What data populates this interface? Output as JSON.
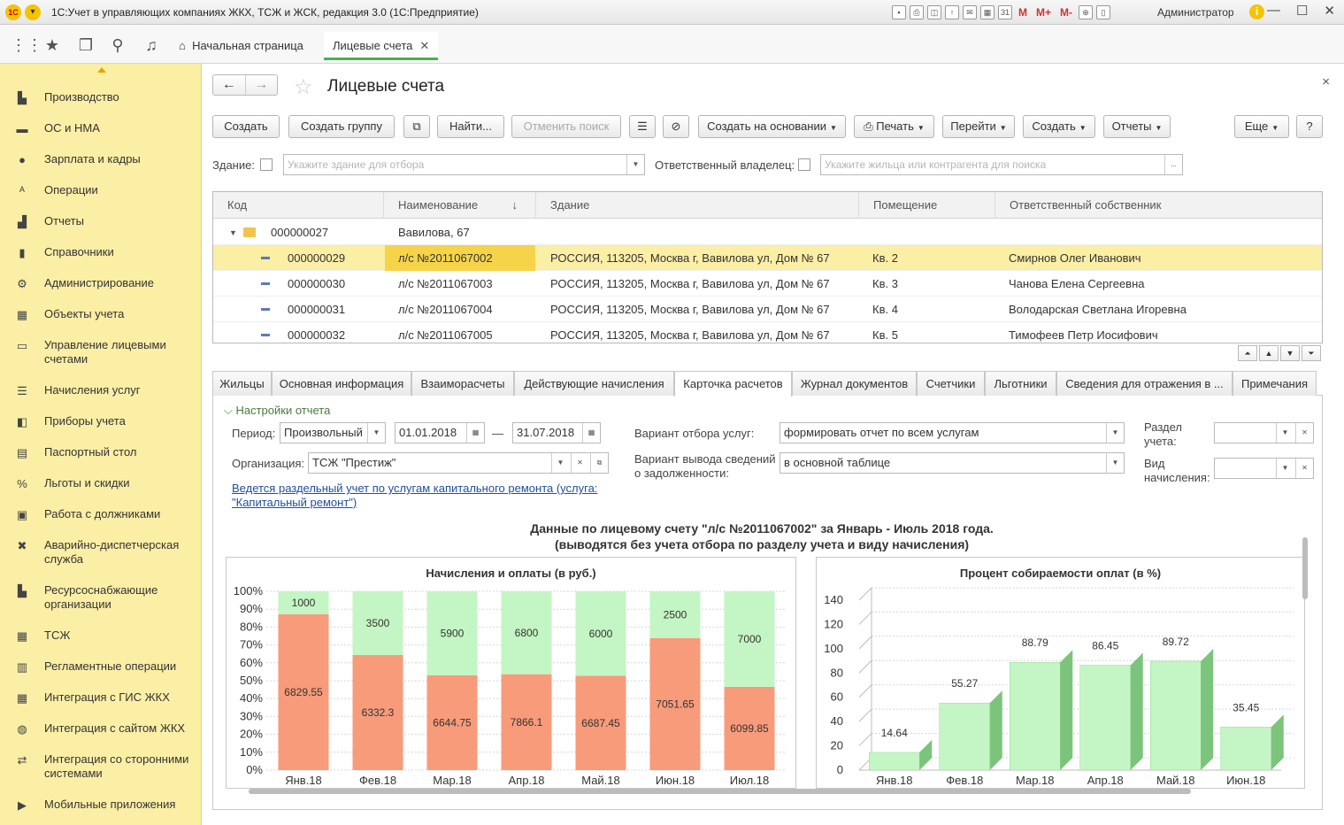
{
  "window": {
    "logo": "1С",
    "title": "1С:Учет в управляющих компаниях ЖКХ, ТСЖ и ЖСК, редакция 3.0  (1С:Предприятие)",
    "user": "Администратор",
    "m_labels": [
      "M",
      "M+",
      "M-"
    ]
  },
  "nav": {
    "tabs": [
      {
        "label": "Начальная страница"
      },
      {
        "label": "Лицевые счета"
      }
    ]
  },
  "sidebar": {
    "items": [
      {
        "label": "Производство",
        "icon": "factory-icon"
      },
      {
        "label": "ОС и НМА",
        "icon": "truck-icon"
      },
      {
        "label": "Зарплата и кадры",
        "icon": "person-icon"
      },
      {
        "label": "Операции",
        "icon": "operations-icon"
      },
      {
        "label": "Отчеты",
        "icon": "bar-chart-icon"
      },
      {
        "label": "Справочники",
        "icon": "book-icon"
      },
      {
        "label": "Администрирование",
        "icon": "gear-icon"
      },
      {
        "label": "Объекты учета",
        "icon": "grid-icon"
      },
      {
        "label": "Управление лицевыми счетами",
        "icon": "card-icon"
      },
      {
        "label": "Начисления услуг",
        "icon": "list-icon"
      },
      {
        "label": "Приборы учета",
        "icon": "meter-icon"
      },
      {
        "label": "Паспортный стол",
        "icon": "passport-icon"
      },
      {
        "label": "Льготы и скидки",
        "icon": "percent-icon"
      },
      {
        "label": "Работа с должниками",
        "icon": "debtor-icon"
      },
      {
        "label": "Аварийно-диспетчерская служба",
        "icon": "tools-icon"
      },
      {
        "label": "Ресурсоснабжающие организации",
        "icon": "supply-icon"
      },
      {
        "label": "ТСЖ",
        "icon": "building-icon"
      },
      {
        "label": "Регламентные операции",
        "icon": "calendar-icon"
      },
      {
        "label": "Интеграция с ГИС ЖКХ",
        "icon": "integration-icon"
      },
      {
        "label": "Интеграция с сайтом ЖКХ",
        "icon": "globe-icon"
      },
      {
        "label": "Интеграция со сторонними системами",
        "icon": "link-icon"
      },
      {
        "label": "Мобильные приложения",
        "icon": "mobile-icon"
      }
    ]
  },
  "page": {
    "title": "Лицевые счета",
    "close": "×"
  },
  "toolbar": {
    "create": "Создать",
    "create_group": "Создать группу",
    "find": "Найти...",
    "cancel_search": "Отменить поиск",
    "create_based": "Создать на основании",
    "print": "Печать",
    "goto": "Перейти",
    "create2": "Создать",
    "reports": "Отчеты",
    "more": "Еще",
    "help": "?"
  },
  "filters": {
    "building_label": "Здание:",
    "building_placeholder": "Укажите здание для отбора",
    "owner_label": "Ответственный владелец:",
    "owner_placeholder": "Укажите жильца или контрагента для поиска"
  },
  "grid": {
    "headers": [
      "Код",
      "Наименование",
      "Здание",
      "Помещение",
      "Ответственный собственник"
    ],
    "group": {
      "code": "000000027",
      "name": "Вавилова, 67"
    },
    "rows": [
      {
        "code": "000000029",
        "name": "л/с №2011067002",
        "building": "РОССИЯ, 113205, Москва г, Вавилова ул, Дом № 67",
        "room": "Кв. 2",
        "owner": "Смирнов Олег Иванович"
      },
      {
        "code": "000000030",
        "name": "л/с №2011067003",
        "building": "РОССИЯ, 113205, Москва г, Вавилова ул, Дом № 67",
        "room": "Кв. 3",
        "owner": "Чанова Елена Сергеевна"
      },
      {
        "code": "000000031",
        "name": "л/с №2011067004",
        "building": "РОССИЯ, 113205, Москва г, Вавилова ул, Дом № 67",
        "room": "Кв. 4",
        "owner": "Володарская Светлана Игоревна"
      },
      {
        "code": "000000032",
        "name": "л/с №2011067005",
        "building": "РОССИЯ, 113205, Москва г, Вавилова ул, Дом № 67",
        "room": "Кв. 5",
        "owner": "Тимофеев Петр Иосифович"
      }
    ]
  },
  "detail_tabs": [
    {
      "label": "Жильцы"
    },
    {
      "label": "Основная информация"
    },
    {
      "label": "Взаиморасчеты"
    },
    {
      "label": "Действующие начисления"
    },
    {
      "label": "Карточка расчетов"
    },
    {
      "label": "Журнал документов"
    },
    {
      "label": "Счетчики"
    },
    {
      "label": "Льготники"
    },
    {
      "label": "Сведения для отражения в ..."
    },
    {
      "label": "Примечания"
    }
  ],
  "settings": {
    "section": "Настройки отчета",
    "period_label": "Период:",
    "period_value": "Произвольный",
    "date_from": "01.01.2018",
    "dash": "—",
    "date_to": "31.07.2018",
    "org_label": "Организация:",
    "org_value": "ТСЖ \"Престиж\"",
    "variant_label": "Вариант отбора услуг:",
    "variant_value": "формировать отчет по всем услугам",
    "debt_label": "Вариант вывода сведений о задолженности:",
    "debt_value": "в основной таблице",
    "section_label": "Раздел учета:",
    "kind_label": "Вид начисления:",
    "link_text": "Ведется раздельный учет по услугам капитального ремонта (услуга: \"Капитальный ремонт\")"
  },
  "report": {
    "title_line1": "Данные по лицевому счету \"л/с №2011067002\" за Январь - Июль 2018 года.",
    "title_line2": "(выводятся без учета отбора по разделу учета и виду начисления)"
  },
  "chart_data": [
    {
      "type": "bar",
      "stacked": "100%",
      "title": "Начисления и оплаты (в руб.)",
      "categories": [
        "Янв.18",
        "Фев.18",
        "Мар.18",
        "Апр.18",
        "Май.18",
        "Июн.18",
        "Июл.18"
      ],
      "series": [
        {
          "values": [
            6829.55,
            6332.3,
            6644.75,
            7866.1,
            6687.45,
            7051.65,
            6099.85
          ],
          "color": "#f79b7a"
        },
        {
          "values": [
            1000,
            3500,
            5900,
            6800,
            6000,
            2500,
            7000
          ],
          "color": "#c4f5c4"
        }
      ],
      "yticks": [
        "100%",
        "90%",
        "80%",
        "70%",
        "60%",
        "50%",
        "40%",
        "30%",
        "20%",
        "10%",
        "0%"
      ],
      "ylim": [
        0,
        100
      ]
    },
    {
      "type": "bar",
      "style": "3d",
      "title": "Процент собираемости оплат (в %)",
      "categories": [
        "Янв.18",
        "Фев.18",
        "Мар.18",
        "Апр.18",
        "Май.18",
        "Июн.18"
      ],
      "values": [
        14.64,
        55.27,
        88.79,
        86.45,
        89.72,
        35.45
      ],
      "value_labels": [
        "14.64",
        "55.27",
        "88.79",
        "86.45",
        "89.72",
        "35.45"
      ],
      "yticks": [
        "140",
        "120",
        "100",
        "80",
        "60",
        "40",
        "20",
        "0"
      ],
      "ylim": [
        0,
        140
      ],
      "color": "#c4f5c4"
    }
  ]
}
